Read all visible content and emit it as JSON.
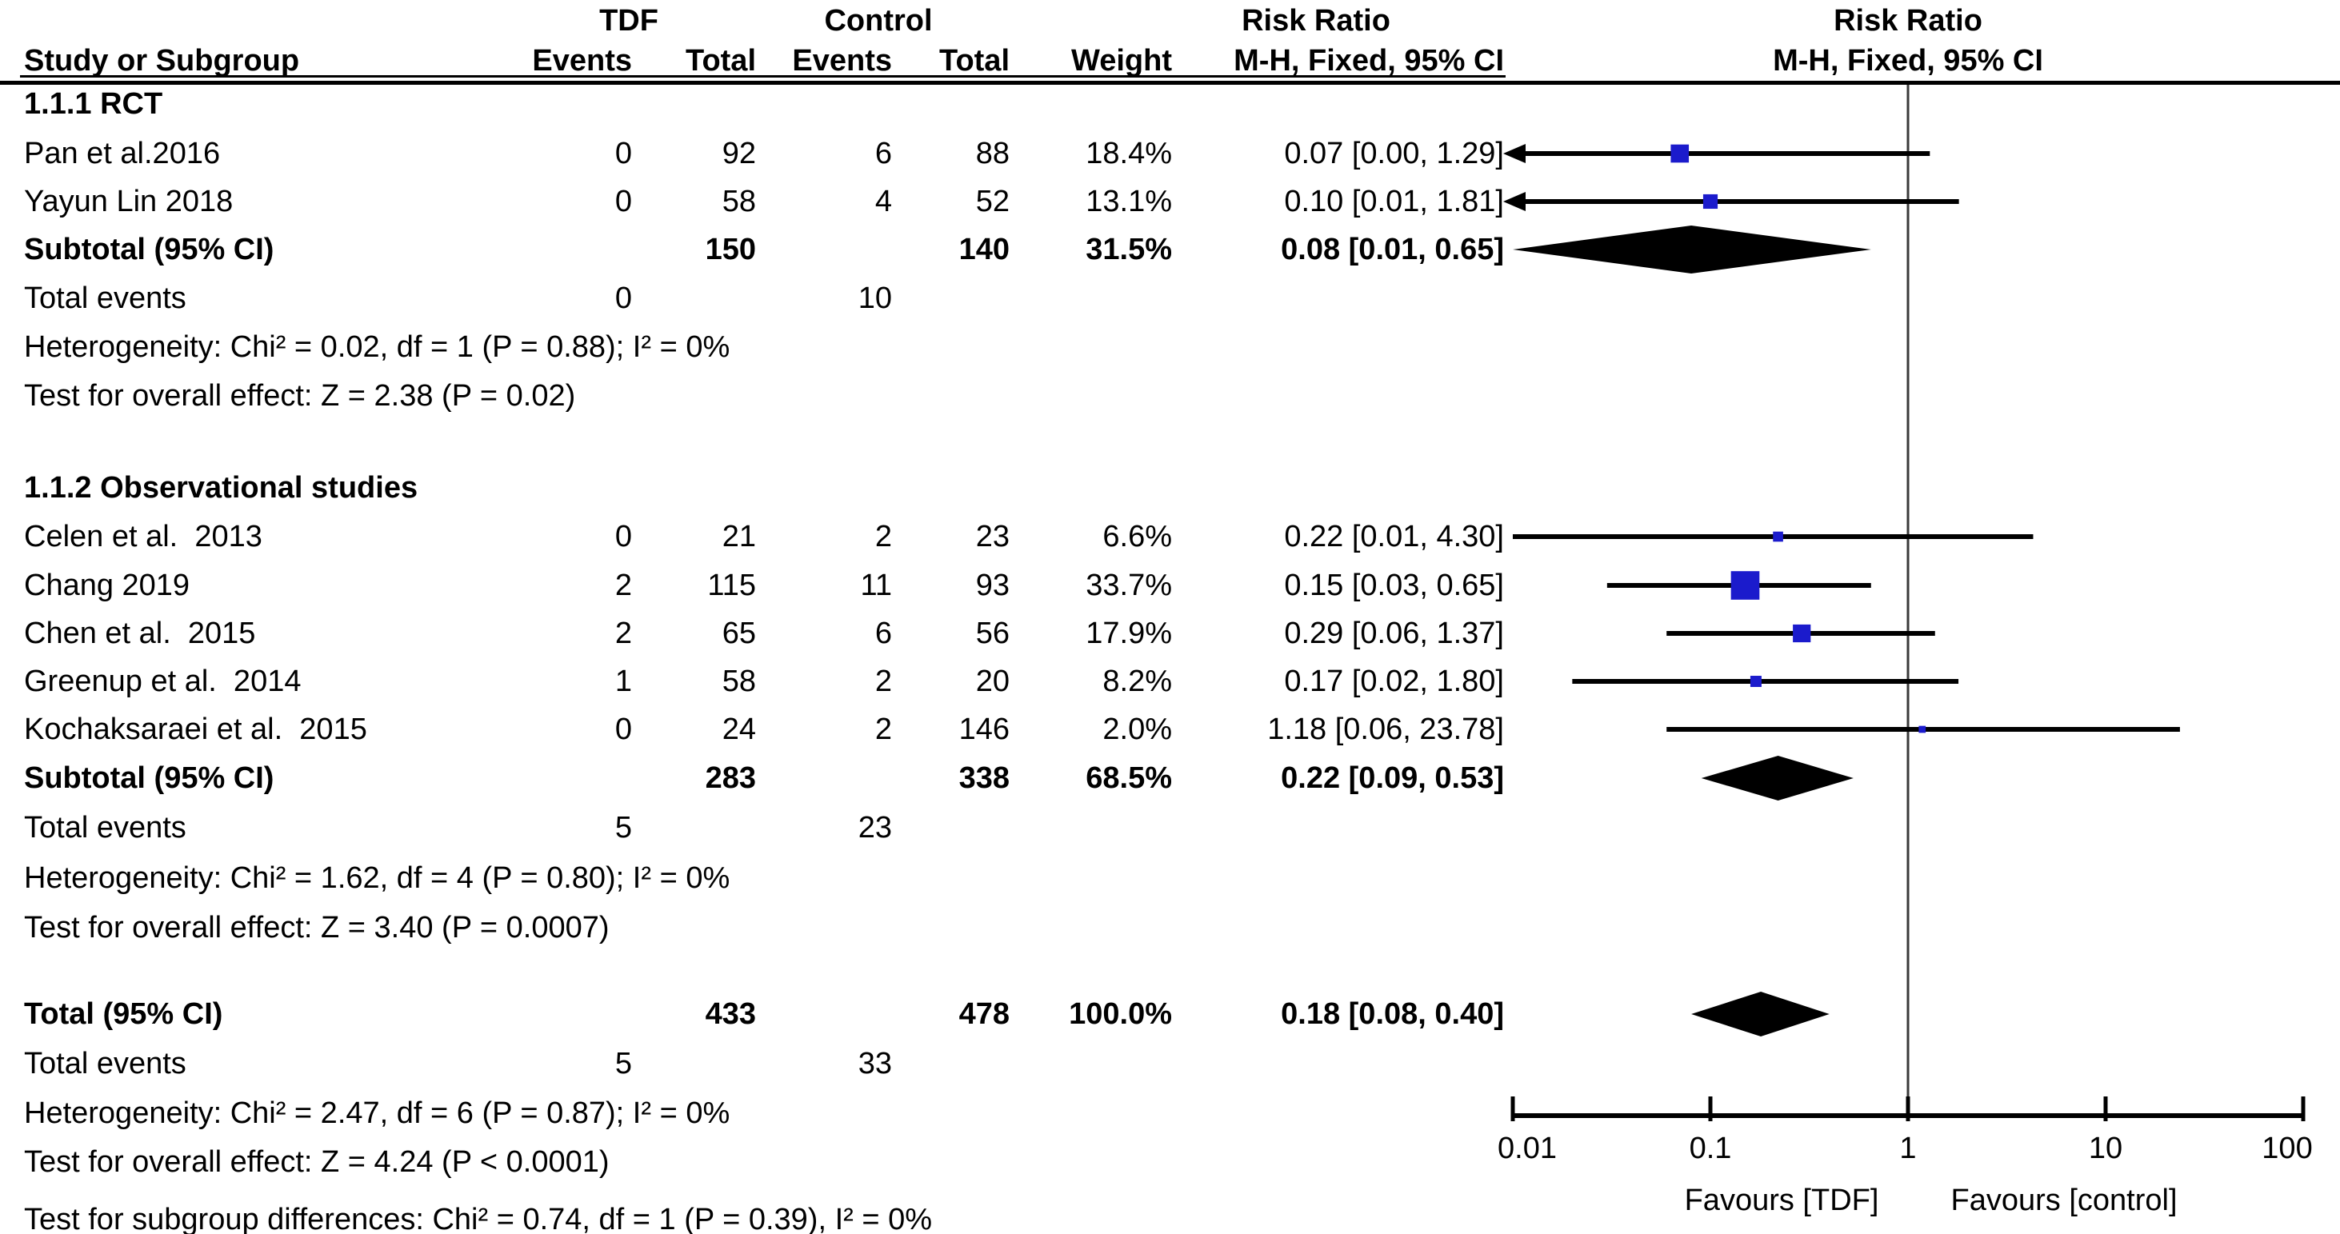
{
  "header": {
    "group_tdf": "TDF",
    "group_control": "Control",
    "risk_ratio_left": "Risk Ratio",
    "risk_ratio_right": "Risk Ratio",
    "study": "Study or Subgroup",
    "events": "Events",
    "total": "Total",
    "weight": "Weight",
    "mh_fixed": "M-H, Fixed, 95% CI"
  },
  "chart_data": {
    "type": "forest",
    "effect_measure": "Risk Ratio",
    "method": "M-H, Fixed, 95% CI",
    "scale": "log10",
    "xlim": [
      0.01,
      100
    ],
    "x_ticks": [
      0.01,
      0.1,
      1,
      10,
      100
    ],
    "x_tick_labels": [
      "0.01",
      "0.1",
      "1",
      "10",
      "100"
    ],
    "vline": 1,
    "favours_left": "Favours [TDF]",
    "favours_right": "Favours [control]",
    "groups": [
      {
        "label": "1.1.1 RCT",
        "studies": [
          {
            "name": "Pan et al.2016",
            "e1": "0",
            "t1": "92",
            "e2": "6",
            "t2": "88",
            "w": "18.4%",
            "ci": "0.07 [0.00, 1.29]",
            "rr": 0.07,
            "lo": 0.0,
            "hi": 1.29,
            "weight_pct": 18.4,
            "arrow_left": true
          },
          {
            "name": "Yayun Lin 2018",
            "e1": "0",
            "t1": "58",
            "e2": "4",
            "t2": "52",
            "w": "13.1%",
            "ci": "0.10 [0.01, 1.81]",
            "rr": 0.1,
            "lo": 0.01,
            "hi": 1.81,
            "weight_pct": 13.1,
            "arrow_left": true
          }
        ],
        "subtotal": {
          "name": "Subtotal (95% CI)",
          "t1": "150",
          "t2": "140",
          "w": "31.5%",
          "ci": "0.08 [0.01, 0.65]",
          "rr": 0.08,
          "lo": 0.01,
          "hi": 0.65
        },
        "total_events": {
          "label": "Total events",
          "e1": "0",
          "e2": "10"
        },
        "heterogeneity": "Heterogeneity: Chi² = 0.02, df = 1 (P = 0.88); I² = 0%",
        "overall_effect": "Test for overall effect: Z = 2.38 (P = 0.02)"
      },
      {
        "label": "1.1.2 Observational studies",
        "studies": [
          {
            "name": "Celen et al.  2013",
            "e1": "0",
            "t1": "21",
            "e2": "2",
            "t2": "23",
            "w": "6.6%",
            "ci": "0.22 [0.01, 4.30]",
            "rr": 0.22,
            "lo": 0.01,
            "hi": 4.3,
            "weight_pct": 6.6,
            "arrow_left": false
          },
          {
            "name": "Chang 2019",
            "e1": "2",
            "t1": "115",
            "e2": "11",
            "t2": "93",
            "w": "33.7%",
            "ci": "0.15 [0.03, 0.65]",
            "rr": 0.15,
            "lo": 0.03,
            "hi": 0.65,
            "weight_pct": 33.7,
            "arrow_left": false
          },
          {
            "name": "Chen et al.  2015",
            "e1": "2",
            "t1": "65",
            "e2": "6",
            "t2": "56",
            "w": "17.9%",
            "ci": "0.29 [0.06, 1.37]",
            "rr": 0.29,
            "lo": 0.06,
            "hi": 1.37,
            "weight_pct": 17.9,
            "arrow_left": false
          },
          {
            "name": "Greenup et al.  2014",
            "e1": "1",
            "t1": "58",
            "e2": "2",
            "t2": "20",
            "w": "8.2%",
            "ci": "0.17 [0.02, 1.80]",
            "rr": 0.17,
            "lo": 0.02,
            "hi": 1.8,
            "weight_pct": 8.2,
            "arrow_left": false
          },
          {
            "name": "Kochaksaraei et al.  2015",
            "e1": "0",
            "t1": "24",
            "e2": "2",
            "t2": "146",
            "w": "2.0%",
            "ci": "1.18 [0.06, 23.78]",
            "rr": 1.18,
            "lo": 0.06,
            "hi": 23.78,
            "weight_pct": 2.0,
            "arrow_left": false
          }
        ],
        "subtotal": {
          "name": "Subtotal (95% CI)",
          "t1": "283",
          "t2": "338",
          "w": "68.5%",
          "ci": "0.22 [0.09, 0.53]",
          "rr": 0.22,
          "lo": 0.09,
          "hi": 0.53
        },
        "total_events": {
          "label": "Total events",
          "e1": "5",
          "e2": "23"
        },
        "heterogeneity": "Heterogeneity: Chi² = 1.62, df = 4 (P = 0.80); I² = 0%",
        "overall_effect": "Test for overall effect: Z = 3.40 (P = 0.0007)"
      }
    ],
    "total": {
      "name": "Total (95% CI)",
      "t1": "433",
      "t2": "478",
      "w": "100.0%",
      "ci": "0.18 [0.08, 0.40]",
      "rr": 0.18,
      "lo": 0.08,
      "hi": 0.4
    },
    "total_events": {
      "label": "Total events",
      "e1": "5",
      "e2": "33"
    },
    "footer": [
      "Heterogeneity: Chi² = 2.47, df = 6 (P = 0.87); I² = 0%",
      "Test for overall effect: Z = 4.24 (P < 0.0001)",
      "Test for subgroup differences: Chi² = 0.74, df = 1 (P = 0.39), I² = 0%"
    ],
    "colors": {
      "marker": "#1b1bcc",
      "line": "#000000",
      "diamond": "#000000",
      "vline": "#3a3a3a"
    }
  }
}
